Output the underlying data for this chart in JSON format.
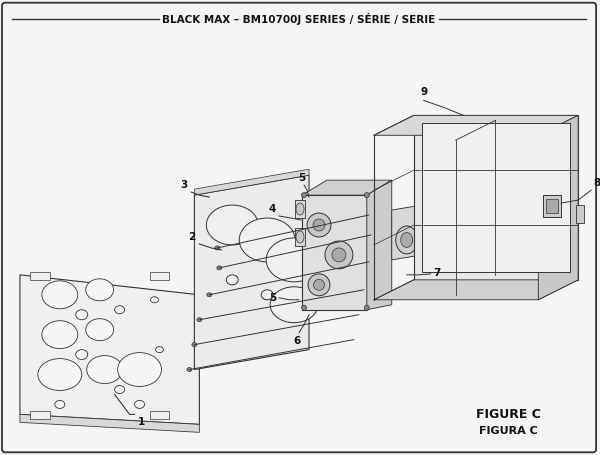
{
  "title": "BLACK MAX – BM10700J SERIES / SÉRIE / SERIE",
  "figure_label": "FIGURE C",
  "figure_label2": "FIGURA C",
  "bg_color": "#f5f5f5",
  "border_color": "#333333",
  "lc": "#333333",
  "lc2": "#555555"
}
